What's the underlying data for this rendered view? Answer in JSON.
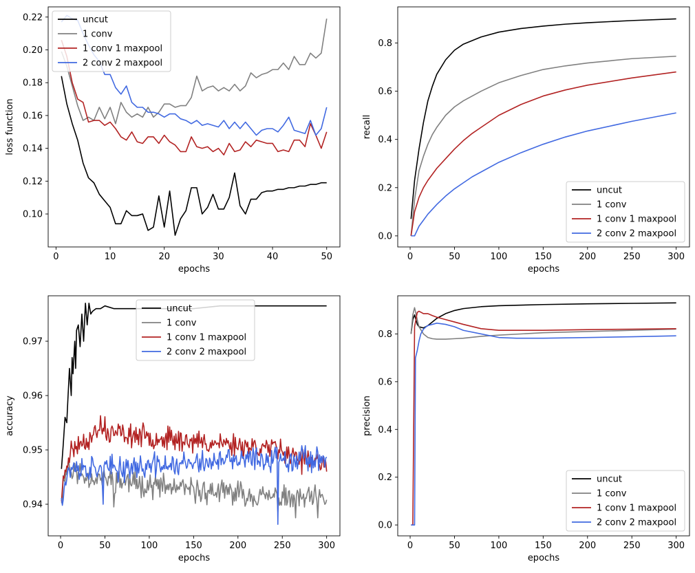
{
  "colors": {
    "uncut": "#000000",
    "conv1": "#808080",
    "conv1_maxpool1": "#b22222",
    "conv2_maxpool2": "#4169e1"
  },
  "chart_data": [
    {
      "id": "loss",
      "type": "line",
      "xlabel": "epochs",
      "ylabel": "loss function",
      "xlim": [
        -1.45,
        52.45
      ],
      "ylim": [
        0.0799,
        0.2262
      ],
      "xticks": [
        0,
        10,
        20,
        30,
        40,
        50
      ],
      "xtick_labels": [
        "0",
        "10",
        "20",
        "30",
        "40",
        "50"
      ],
      "yticks": [
        0.1,
        0.12,
        0.14,
        0.16,
        0.18,
        0.2,
        0.22
      ],
      "ytick_labels": [
        "0.10",
        "0.12",
        "0.14",
        "0.16",
        "0.18",
        "0.20",
        "0.22"
      ],
      "legend_loc": "upper-left",
      "legend": [
        "uncut",
        "1 conv",
        "1 conv 1 maxpool",
        "2 conv 2 maxpool"
      ],
      "series": [
        {
          "name": "uncut",
          "color_key": "uncut",
          "x_start": 1,
          "x_step": 1,
          "values": [
            0.184,
            0.167,
            0.155,
            0.145,
            0.131,
            0.122,
            0.119,
            0.112,
            0.108,
            0.104,
            0.094,
            0.094,
            0.102,
            0.099,
            0.099,
            0.1,
            0.09,
            0.092,
            0.111,
            0.092,
            0.114,
            0.087,
            0.097,
            0.102,
            0.116,
            0.116,
            0.1,
            0.104,
            0.112,
            0.103,
            0.103,
            0.11,
            0.125,
            0.105,
            0.1,
            0.109,
            0.109,
            0.113,
            0.114,
            0.114,
            0.115,
            0.115,
            0.116,
            0.116,
            0.117,
            0.117,
            0.118,
            0.118,
            0.119,
            0.119
          ]
        },
        {
          "name": "1 conv",
          "color_key": "conv1",
          "x_start": 1,
          "x_step": 1,
          "values": [
            0.199,
            0.19,
            0.178,
            0.166,
            0.157,
            0.159,
            0.157,
            0.165,
            0.158,
            0.165,
            0.155,
            0.168,
            0.162,
            0.159,
            0.161,
            0.159,
            0.165,
            0.159,
            0.162,
            0.167,
            0.167,
            0.165,
            0.166,
            0.166,
            0.171,
            0.184,
            0.175,
            0.177,
            0.178,
            0.175,
            0.177,
            0.175,
            0.179,
            0.175,
            0.178,
            0.186,
            0.183,
            0.185,
            0.186,
            0.188,
            0.188,
            0.192,
            0.188,
            0.196,
            0.191,
            0.191,
            0.198,
            0.195,
            0.198,
            0.219
          ]
        },
        {
          "name": "1 conv 1 maxpool",
          "color_key": "conv1_maxpool1",
          "x_start": 1,
          "x_step": 1,
          "values": [
            0.206,
            0.196,
            0.18,
            0.17,
            0.168,
            0.156,
            0.157,
            0.157,
            0.154,
            0.156,
            0.152,
            0.147,
            0.145,
            0.15,
            0.144,
            0.143,
            0.147,
            0.147,
            0.143,
            0.148,
            0.144,
            0.142,
            0.138,
            0.138,
            0.147,
            0.141,
            0.14,
            0.141,
            0.138,
            0.14,
            0.136,
            0.143,
            0.138,
            0.139,
            0.144,
            0.141,
            0.145,
            0.144,
            0.143,
            0.143,
            0.138,
            0.139,
            0.138,
            0.145,
            0.145,
            0.141,
            0.155,
            0.148,
            0.14,
            0.15
          ]
        },
        {
          "name": "2 conv 2 maxpool",
          "color_key": "conv2_maxpool2",
          "x_start": 1,
          "x_step": 1,
          "values": [
            0.217,
            0.221,
            0.219,
            0.218,
            0.21,
            0.203,
            0.197,
            0.193,
            0.185,
            0.185,
            0.177,
            0.173,
            0.178,
            0.168,
            0.165,
            0.165,
            0.162,
            0.162,
            0.161,
            0.159,
            0.161,
            0.161,
            0.158,
            0.157,
            0.155,
            0.157,
            0.154,
            0.155,
            0.154,
            0.153,
            0.157,
            0.152,
            0.156,
            0.152,
            0.156,
            0.152,
            0.148,
            0.151,
            0.152,
            0.152,
            0.15,
            0.154,
            0.159,
            0.151,
            0.15,
            0.149,
            0.157,
            0.148,
            0.152,
            0.165
          ]
        }
      ]
    },
    {
      "id": "recall",
      "type": "line",
      "xlabel": "epochs",
      "ylabel": "recall",
      "xlim": [
        -14,
        315
      ],
      "ylim": [
        -0.046,
        0.9497
      ],
      "xticks": [
        0,
        50,
        100,
        150,
        200,
        250,
        300
      ],
      "xtick_labels": [
        "0",
        "50",
        "100",
        "150",
        "200",
        "250",
        "300"
      ],
      "yticks": [
        0.0,
        0.2,
        0.4,
        0.6,
        0.8
      ],
      "ytick_labels": [
        "0.0",
        "0.2",
        "0.4",
        "0.6",
        "0.8"
      ],
      "legend_loc": "lower-right",
      "legend": [
        "uncut",
        "1 conv",
        "1 conv 1 maxpool",
        "2 conv 2 maxpool"
      ],
      "series": [
        {
          "name": "uncut",
          "color_key": "uncut",
          "x": [
            1,
            5,
            10,
            15,
            20,
            25,
            30,
            40,
            50,
            60,
            70,
            80,
            100,
            125,
            150,
            175,
            200,
            250,
            300
          ],
          "values": [
            0.07,
            0.23,
            0.36,
            0.47,
            0.56,
            0.62,
            0.67,
            0.73,
            0.77,
            0.795,
            0.81,
            0.825,
            0.845,
            0.86,
            0.87,
            0.878,
            0.884,
            0.893,
            0.9
          ]
        },
        {
          "name": "1 conv",
          "color_key": "conv1",
          "x": [
            1,
            5,
            10,
            15,
            20,
            25,
            30,
            40,
            50,
            60,
            70,
            80,
            100,
            125,
            150,
            175,
            200,
            250,
            300
          ],
          "values": [
            0.0,
            0.15,
            0.27,
            0.33,
            0.38,
            0.42,
            0.45,
            0.5,
            0.535,
            0.56,
            0.58,
            0.6,
            0.635,
            0.665,
            0.69,
            0.705,
            0.717,
            0.735,
            0.745
          ]
        },
        {
          "name": "1 conv 1 maxpool",
          "color_key": "conv1_maxpool1",
          "x": [
            1,
            5,
            10,
            15,
            20,
            25,
            30,
            40,
            50,
            60,
            70,
            80,
            100,
            125,
            150,
            175,
            200,
            250,
            300
          ],
          "values": [
            0.0,
            0.1,
            0.16,
            0.2,
            0.23,
            0.255,
            0.28,
            0.32,
            0.36,
            0.395,
            0.425,
            0.45,
            0.5,
            0.545,
            0.58,
            0.605,
            0.625,
            0.655,
            0.68
          ]
        },
        {
          "name": "2 conv 2 maxpool",
          "color_key": "conv2_maxpool2",
          "x": [
            1,
            5,
            10,
            15,
            20,
            25,
            30,
            40,
            50,
            60,
            70,
            80,
            100,
            125,
            150,
            175,
            200,
            250,
            300
          ],
          "values": [
            0.0,
            0.0,
            0.04,
            0.065,
            0.09,
            0.11,
            0.13,
            0.165,
            0.195,
            0.22,
            0.245,
            0.265,
            0.305,
            0.345,
            0.38,
            0.41,
            0.435,
            0.475,
            0.51
          ]
        }
      ]
    },
    {
      "id": "accuracy",
      "type": "line",
      "xlabel": "epochs",
      "ylabel": "accuracy",
      "xlim": [
        -14,
        315
      ],
      "ylim": [
        0.93418,
        0.97836
      ],
      "xticks": [
        0,
        50,
        100,
        150,
        200,
        250,
        300
      ],
      "xtick_labels": [
        "0",
        "50",
        "100",
        "150",
        "200",
        "250",
        "300"
      ],
      "yticks": [
        0.94,
        0.95,
        0.96,
        0.97
      ],
      "ytick_labels": [
        "0.94",
        "0.95",
        "0.96",
        "0.97"
      ],
      "legend_loc": "upper-center",
      "legend": [
        "uncut",
        "1 conv",
        "1 conv 1 maxpool",
        "2 conv 2 maxpool"
      ],
      "series": [
        {
          "name": "uncut",
          "color_key": "uncut",
          "x": [
            1,
            3,
            5,
            7,
            8,
            10,
            12,
            13,
            14,
            16,
            17,
            18,
            20,
            22,
            24,
            26,
            28,
            30,
            32,
            34,
            36,
            40,
            45,
            50,
            60,
            80,
            100,
            120,
            150,
            180,
            200,
            220,
            250,
            280,
            300
          ],
          "values": [
            0.9465,
            0.951,
            0.956,
            0.955,
            0.9585,
            0.965,
            0.96,
            0.967,
            0.964,
            0.97,
            0.965,
            0.972,
            0.973,
            0.969,
            0.975,
            0.97,
            0.977,
            0.973,
            0.977,
            0.975,
            0.9755,
            0.976,
            0.976,
            0.9765,
            0.976,
            0.976,
            0.976,
            0.976,
            0.976,
            0.9765,
            0.9765,
            0.9765,
            0.9765,
            0.9765,
            0.9765
          ]
        }
      ],
      "noisy_series": [
        {
          "name": "1 conv",
          "color_key": "conv1",
          "knots_x": [
            1,
            5,
            10,
            30,
            60,
            100,
            150,
            200,
            250,
            300
          ],
          "knots_y": [
            0.9415,
            0.946,
            0.9465,
            0.945,
            0.9445,
            0.9435,
            0.9425,
            0.942,
            0.941,
            0.941
          ],
          "amp": 0.0017,
          "seed": 11,
          "n": 300,
          "spikes": [
            [
              9,
              0.9485
            ],
            [
              60,
              0.9395
            ],
            [
              265,
              0.9375
            ],
            [
              290,
              0.9375
            ]
          ]
        },
        {
          "name": "1 conv 1 maxpool",
          "color_key": "conv1_maxpool1",
          "knots_x": [
            1,
            5,
            10,
            20,
            40,
            60,
            100,
            150,
            200,
            250,
            280,
            300
          ],
          "knots_y": [
            0.9415,
            0.946,
            0.9495,
            0.951,
            0.953,
            0.953,
            0.9525,
            0.9515,
            0.951,
            0.95,
            0.948,
            0.947
          ],
          "amp": 0.0016,
          "seed": 23,
          "n": 300,
          "spikes": [
            [
              45,
              0.9563
            ],
            [
              50,
              0.9561
            ],
            [
              272,
              0.9455
            ]
          ]
        },
        {
          "name": "2 conv 2 maxpool",
          "color_key": "conv2_maxpool2",
          "knots_x": [
            1,
            5,
            10,
            30,
            60,
            100,
            150,
            200,
            250,
            300
          ],
          "knots_y": [
            0.9415,
            0.944,
            0.9465,
            0.9465,
            0.9465,
            0.947,
            0.9475,
            0.948,
            0.9485,
            0.9485
          ],
          "amp": 0.0018,
          "seed": 37,
          "n": 300,
          "spikes": [
            [
              48,
              0.94
            ],
            [
              245,
              0.9363
            ],
            [
              298,
              0.9468
            ]
          ]
        }
      ]
    },
    {
      "id": "precision",
      "type": "line",
      "xlabel": "epochs",
      "ylabel": "precision",
      "xlim": [
        -14,
        315
      ],
      "ylim": [
        -0.0457,
        0.9597
      ],
      "xticks": [
        0,
        50,
        100,
        150,
        200,
        250,
        300
      ],
      "xtick_labels": [
        "0",
        "50",
        "100",
        "150",
        "200",
        "250",
        "300"
      ],
      "yticks": [
        0.0,
        0.2,
        0.4,
        0.6,
        0.8
      ],
      "ytick_labels": [
        "0.0",
        "0.2",
        "0.4",
        "0.6",
        "0.8"
      ],
      "legend_loc": "lower-right",
      "legend": [
        "uncut",
        "1 conv",
        "1 conv 1 maxpool",
        "2 conv 2 maxpool"
      ],
      "series": [
        {
          "name": "uncut",
          "color_key": "uncut",
          "x": [
            1,
            3,
            5,
            8,
            10,
            15,
            20,
            25,
            30,
            40,
            50,
            60,
            80,
            100,
            150,
            200,
            250,
            300
          ],
          "values": [
            0.8,
            0.86,
            0.88,
            0.84,
            0.83,
            0.825,
            0.835,
            0.85,
            0.865,
            0.885,
            0.898,
            0.906,
            0.914,
            0.918,
            0.923,
            0.926,
            0.928,
            0.93
          ]
        },
        {
          "name": "1 conv",
          "color_key": "conv1",
          "x": [
            1,
            3,
            5,
            8,
            10,
            15,
            20,
            25,
            30,
            40,
            50,
            60,
            80,
            100,
            150,
            200,
            250,
            300
          ],
          "values": [
            0.8,
            0.88,
            0.91,
            0.86,
            0.83,
            0.8,
            0.785,
            0.78,
            0.778,
            0.778,
            0.78,
            0.782,
            0.79,
            0.795,
            0.805,
            0.81,
            0.815,
            0.82
          ]
        },
        {
          "name": "1 conv 1 maxpool",
          "color_key": "conv1_maxpool1",
          "x": [
            1,
            3,
            5,
            8,
            10,
            15,
            20,
            25,
            30,
            40,
            50,
            60,
            80,
            100,
            150,
            200,
            250,
            300
          ],
          "values": [
            0.0,
            0.0,
            0.83,
            0.89,
            0.895,
            0.885,
            0.885,
            0.877,
            0.87,
            0.86,
            0.85,
            0.84,
            0.822,
            0.815,
            0.815,
            0.818,
            0.82,
            0.822
          ]
        },
        {
          "name": "2 conv 2 maxpool",
          "color_key": "conv2_maxpool2",
          "x": [
            1,
            3,
            5,
            6,
            8,
            10,
            12,
            15,
            18,
            20,
            25,
            30,
            40,
            50,
            60,
            80,
            100,
            120,
            150,
            200,
            250,
            300
          ],
          "values": [
            0.0,
            0.0,
            0.0,
            0.7,
            0.73,
            0.77,
            0.8,
            0.82,
            0.83,
            0.835,
            0.84,
            0.845,
            0.84,
            0.83,
            0.815,
            0.8,
            0.785,
            0.782,
            0.782,
            0.785,
            0.788,
            0.792
          ]
        }
      ]
    }
  ]
}
